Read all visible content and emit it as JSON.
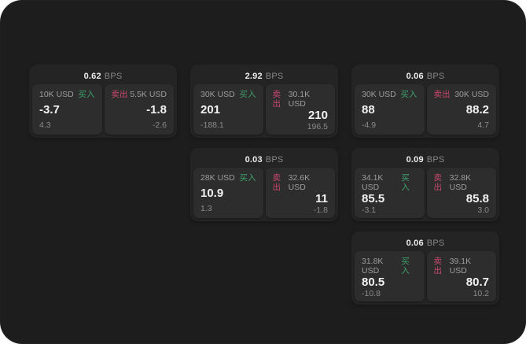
{
  "labels": {
    "buy": "买入",
    "sell": "卖出",
    "bps_unit": "BPS"
  },
  "colors": {
    "background": "#1d1d1d",
    "card_bg": "#242424",
    "tile_bg": "#2d2d2d",
    "buy_green": "#3fa06a",
    "sell_red": "#c9476e",
    "value_white": "#f2f2f2",
    "muted_grey": "#8b8b8b"
  },
  "cards": [
    {
      "bps": "0.62",
      "buy": {
        "size": "10K USD",
        "value": "-3.7",
        "sub": "4.3"
      },
      "sell": {
        "size": "5.5K USD",
        "value": "-1.8",
        "sub": "-2.6"
      }
    },
    {
      "bps": "2.92",
      "buy": {
        "size": "30K USD",
        "value": "201",
        "sub": "-188.1"
      },
      "sell": {
        "size": "30.1K USD",
        "value": "210",
        "sub": "196.5"
      }
    },
    {
      "bps": "0.06",
      "buy": {
        "size": "30K USD",
        "value": "88",
        "sub": "-4.9"
      },
      "sell": {
        "size": "30K USD",
        "value": "88.2",
        "sub": "4.7"
      }
    },
    {
      "bps": "0.03",
      "buy": {
        "size": "28K USD",
        "value": "10.9",
        "sub": "1.3"
      },
      "sell": {
        "size": "32.6K USD",
        "value": "11",
        "sub": "-1.8"
      }
    },
    {
      "bps": "0.09",
      "buy": {
        "size": "34.1K USD",
        "value": "85.5",
        "sub": "-3.1"
      },
      "sell": {
        "size": "32.8K USD",
        "value": "85.8",
        "sub": "3.0"
      }
    },
    {
      "bps": "0.06",
      "buy": {
        "size": "31.8K USD",
        "value": "80.5",
        "sub": "-10.8"
      },
      "sell": {
        "size": "39.1K USD",
        "value": "80.7",
        "sub": "10.2"
      }
    }
  ]
}
